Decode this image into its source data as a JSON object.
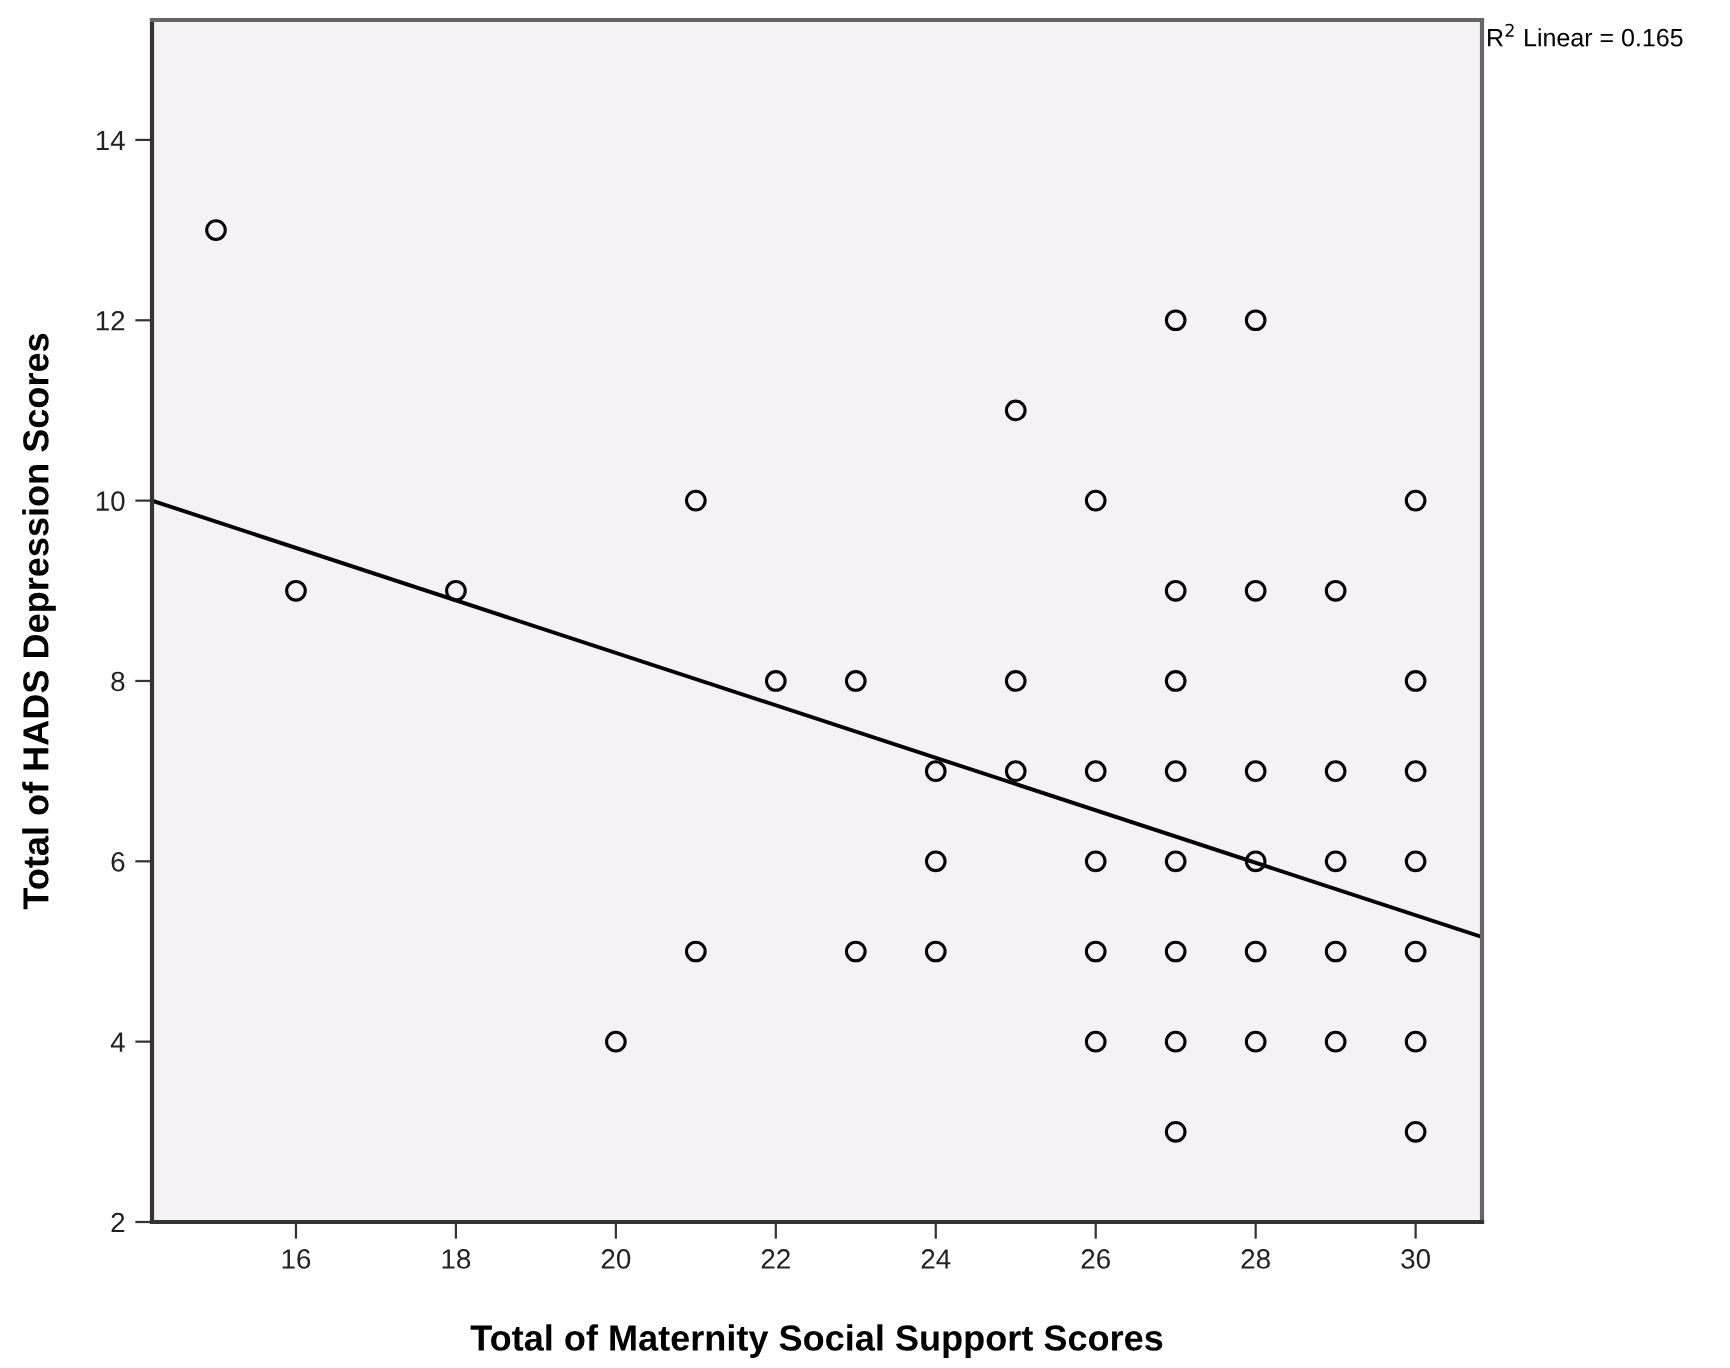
{
  "chart_data": {
    "type": "scatter",
    "xlabel": "Total of Maternity Social Support Scores",
    "ylabel": "Total of HADS Depression Scores",
    "annotations": [
      "R$^{2}$ Linear = 0.165"
    ],
    "xlim": [
      14.2,
      30.83
    ],
    "xticks": [
      16,
      18,
      20,
      22,
      24,
      26,
      28,
      30
    ],
    "ylim": [
      2,
      15.33
    ],
    "yticks": [
      2,
      4,
      6,
      8,
      10,
      12,
      14
    ],
    "grid": false,
    "legend": false,
    "series": [
      {
        "color": "#000000",
        "marker": "circle",
        "x": [
          15,
          16,
          18,
          20,
          21,
          21,
          22,
          23,
          23,
          24,
          24,
          24,
          25,
          25,
          25,
          26,
          26,
          26,
          26,
          26,
          27,
          27,
          27,
          27,
          27,
          27,
          27,
          27,
          28,
          28,
          28,
          28,
          28,
          28,
          29,
          29,
          29,
          29,
          29,
          30,
          30,
          30,
          30,
          30,
          30,
          30
        ],
        "values": [
          13,
          9,
          9,
          4,
          10,
          5,
          8,
          8,
          5,
          7,
          6,
          5,
          11,
          8,
          7,
          10,
          7,
          6,
          5,
          4,
          12,
          9,
          8,
          7,
          6,
          5,
          4,
          3,
          12,
          9,
          7,
          6,
          5,
          4,
          9,
          7,
          6,
          5,
          4,
          10,
          8,
          7,
          6,
          5,
          4,
          3
        ]
      },
      {
        "type": "line",
        "color": "#000000",
        "x": [
          14.2,
          30.83
        ],
        "values": [
          10.0,
          5.16
        ],
        "line_style": "solid",
        "marker": "none"
      }
    ]
  }
}
